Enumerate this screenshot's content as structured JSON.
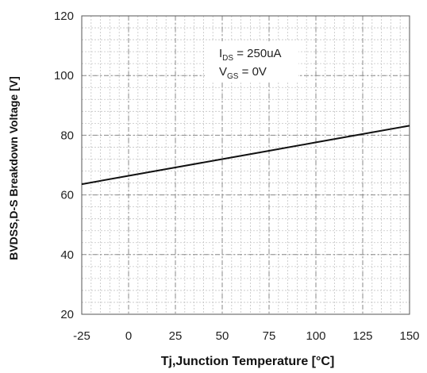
{
  "chart_data": {
    "type": "line",
    "title": "",
    "xlabel": "Tj,Junction Temperature [°C]",
    "ylabel": "BVDSS,D-S Breakdown Voltage  [V]",
    "xlim": [
      -25,
      150
    ],
    "ylim": [
      20,
      120
    ],
    "x_ticks": [
      "-25",
      "0",
      "25",
      "50",
      "75",
      "100",
      "125",
      "150"
    ],
    "y_ticks": [
      "20",
      "40",
      "60",
      "80",
      "100",
      "120"
    ],
    "x_minor_step": 5,
    "y_minor_step": 4,
    "grid": true,
    "series": [
      {
        "x": [
          -25,
          0,
          25,
          50,
          75,
          100,
          125,
          150
        ],
        "y": [
          63.6,
          66.4,
          69.2,
          72.0,
          74.8,
          77.6,
          80.4,
          83.2
        ],
        "color": "#111111"
      }
    ],
    "annotations": {
      "ids": {
        "main": "I",
        "sub": "DS",
        "value": " = 250uA"
      },
      "vgs": {
        "main": "V",
        "sub": "GS",
        "value": " = 0V"
      }
    }
  }
}
